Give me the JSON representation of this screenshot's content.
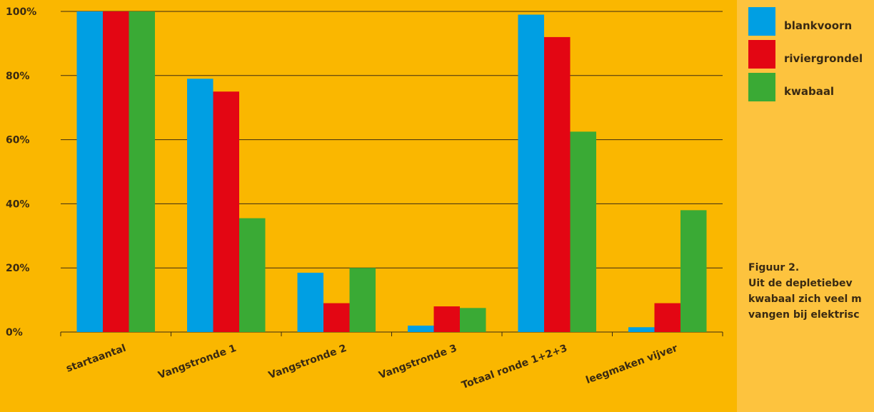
{
  "chart_data": {
    "type": "bar",
    "categories": [
      "startaantal",
      "Vangstronde 1",
      "Vangstronde 2",
      "Vangstronde 3",
      "Totaal ronde 1+2+3",
      "leegmaken vijver"
    ],
    "series": [
      {
        "name": "blankvoorn",
        "color": "#009FE3",
        "values": [
          100,
          79,
          18.5,
          2,
          99,
          1.5
        ]
      },
      {
        "name": "riviergrondel",
        "color": "#E30613",
        "values": [
          100,
          75,
          9,
          8,
          92,
          9
        ]
      },
      {
        "name": "kwabaal",
        "color": "#3AAA35",
        "values": [
          100,
          35.5,
          20,
          7.5,
          62.5,
          38
        ]
      }
    ],
    "ylim": [
      0,
      100
    ],
    "yticks": [
      "0%",
      "20%",
      "40%",
      "60%",
      "80%",
      "100%"
    ],
    "grid": true,
    "legend_position": "top-right"
  },
  "caption": {
    "heading": "Figuur 2.",
    "lines": [
      "Uit de depletiebev",
      "kwabaal zich veel m",
      "vangen bij elektrisc"
    ]
  }
}
